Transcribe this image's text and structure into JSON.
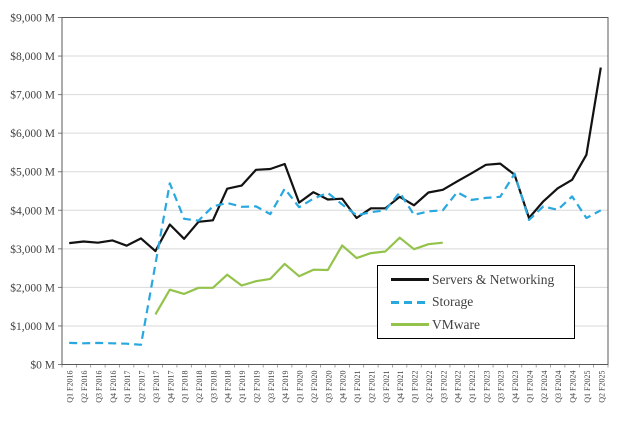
{
  "chart_data": {
    "type": "line",
    "title": "",
    "xlabel": "",
    "ylabel": "",
    "grid": "horizontal",
    "legend_position": "inside-bottom-right",
    "x_categories": [
      "Q1 F2016",
      "Q2 F2016",
      "Q3 F2016",
      "Q4 F2016",
      "Q1 F2017",
      "Q2 F2017",
      "Q3 F2017",
      "Q4 F2017",
      "Q1 F2018",
      "Q2 F2018",
      "Q3 F2018",
      "Q4 F2018",
      "Q1 F2019",
      "Q2 F2019",
      "Q3 F2019",
      "Q4 F2019",
      "Q1 F2020",
      "Q2 F2020",
      "Q3 F2020",
      "Q4 F2020",
      "Q1 F2021",
      "Q2 F2021",
      "Q3 F2021",
      "Q4 F2021",
      "Q1 F2022",
      "Q2 F2022",
      "Q3 F2022",
      "Q4 F2022",
      "Q1 F2023",
      "Q2 F2023",
      "Q3 F2023",
      "Q4 F2023",
      "Q1 F2024",
      "Q2 F2024",
      "Q3 F2024",
      "Q4 F2024",
      "Q1 F2025",
      "Q2 F2025"
    ],
    "y_axis": {
      "min": 0,
      "max": 9000,
      "step": 1000,
      "tick_labels": [
        "$0 M",
        "$1,000 M",
        "$2,000 M",
        "$3,000 M",
        "$4,000 M",
        "$5,000 M",
        "$6,000 M",
        "$7,000 M",
        "$8,000 M",
        "$9,000 M"
      ]
    },
    "series": [
      {
        "name": "Servers & Networking",
        "color": "#121212",
        "style": "solid",
        "values": [
          3150,
          3190,
          3160,
          3220,
          3080,
          3270,
          2940,
          3630,
          3260,
          3700,
          3740,
          4560,
          4640,
          5050,
          5070,
          5200,
          4200,
          4470,
          4280,
          4300,
          3800,
          4050,
          4050,
          4350,
          4130,
          4460,
          4530,
          4750,
          4960,
          5180,
          5210,
          4920,
          3800,
          4230,
          4570,
          4790,
          5440,
          7700
        ]
      },
      {
        "name": "Storage",
        "color": "#29a8e0",
        "style": "dashed",
        "values": [
          560,
          550,
          560,
          550,
          540,
          510,
          2600,
          4700,
          3780,
          3730,
          4100,
          4190,
          4090,
          4100,
          3900,
          4560,
          4080,
          4300,
          4450,
          4150,
          3870,
          3950,
          4000,
          4460,
          3880,
          3970,
          4000,
          4470,
          4270,
          4320,
          4350,
          4950,
          3750,
          4100,
          4010,
          4360,
          3800,
          4000
        ]
      },
      {
        "name": "VMware",
        "color": "#94c34c",
        "style": "solid",
        "values": [
          null,
          null,
          null,
          null,
          null,
          null,
          1300,
          1940,
          1830,
          1990,
          1990,
          2330,
          2050,
          2160,
          2220,
          2610,
          2290,
          2460,
          2450,
          3090,
          2760,
          2890,
          2930,
          3290,
          2990,
          3120,
          3160,
          null,
          null,
          null,
          null,
          null,
          null,
          null,
          null,
          null,
          null,
          null
        ]
      }
    ]
  }
}
